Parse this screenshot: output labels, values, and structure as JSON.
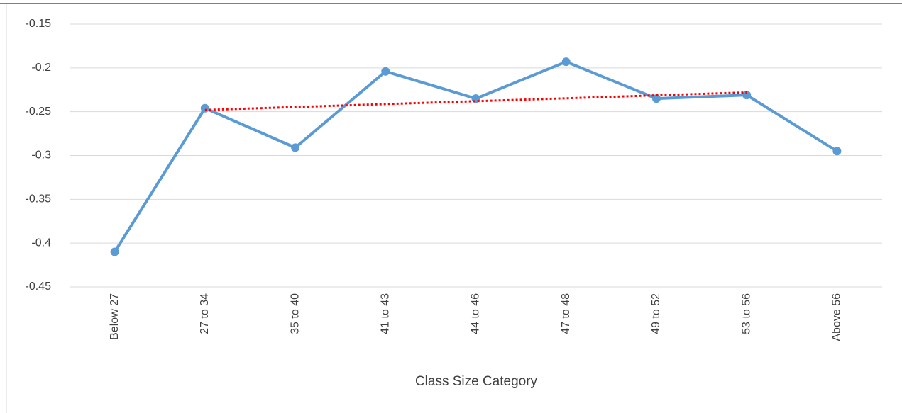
{
  "chart_data": {
    "type": "line",
    "x_label": "Class Size Category",
    "categories": [
      "Below 27",
      "27 to 34",
      "35 to 40",
      "41 to 43",
      "44 to 46",
      "47 to 48",
      "49 to 52",
      "53 to 56",
      "Above 56"
    ],
    "series": [
      {
        "color": "#5b9bd5",
        "values": [
          -0.41,
          -0.246,
          -0.291,
          -0.204,
          -0.235,
          -0.193,
          -0.235,
          -0.231,
          -0.295
        ]
      }
    ],
    "trendline": {
      "color": "#ff0000",
      "dashed": true,
      "values": [
        null,
        -0.248,
        -0.2447,
        -0.2413,
        -0.238,
        -0.2347,
        -0.2313,
        -0.228,
        null
      ]
    },
    "ylim": [
      -0.45,
      -0.15
    ],
    "yticks": [
      -0.15,
      -0.2,
      -0.25,
      -0.3,
      -0.35,
      -0.4,
      -0.45
    ],
    "grid": true
  }
}
